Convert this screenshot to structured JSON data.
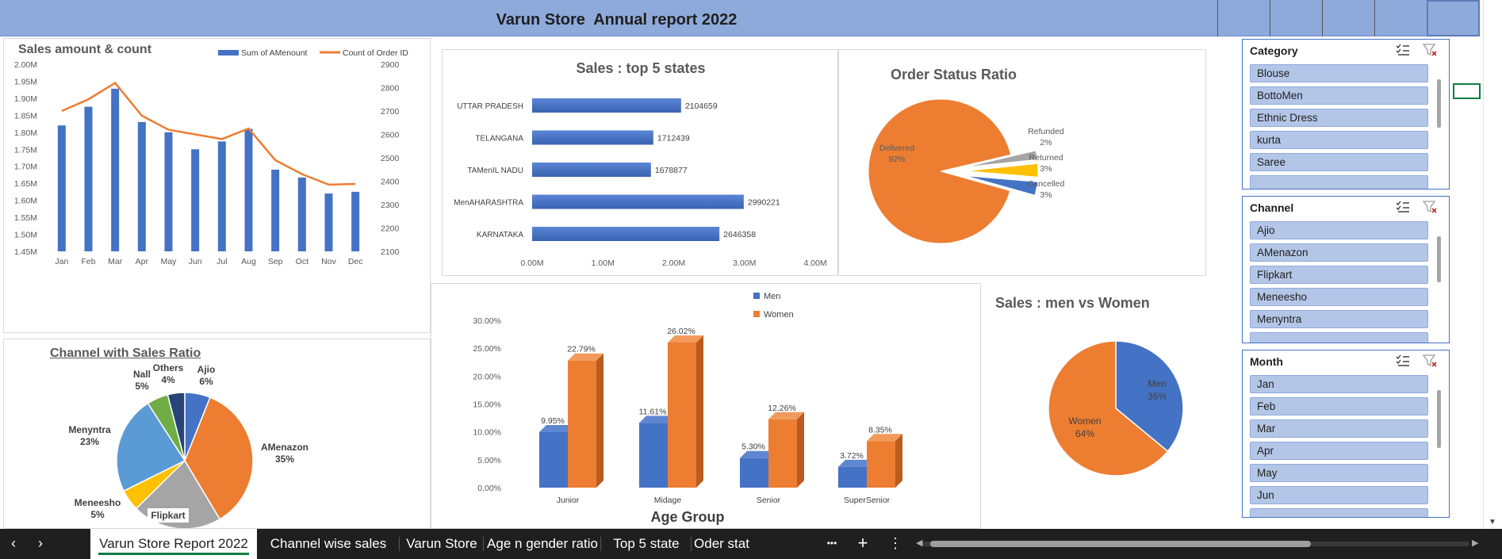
{
  "report": {
    "title": "Varun Store  Annual report 2022"
  },
  "colors": {
    "title_band": "#8eaadb",
    "blue": "#4472c4",
    "orange": "#ed7d31",
    "gray": "#a5a5a5",
    "gold": "#ffc000",
    "light_blue": "#5b9bd5",
    "green": "#70ad47",
    "navy": "#264478",
    "slicer_item": "#b4c6e7"
  },
  "chart_data": [
    {
      "id": "sales_amount_count",
      "type": "bar",
      "title": "Sales amount & count",
      "categories": [
        "Jan",
        "Feb",
        "Mar",
        "Apr",
        "May",
        "Jun",
        "Jul",
        "Aug",
        "Sep",
        "Oct",
        "Nov",
        "Dec"
      ],
      "series": [
        {
          "name": "Sum of AMenount",
          "type": "bar",
          "axis": "left",
          "values": [
            1.82,
            1.875,
            1.928,
            1.83,
            1.8,
            1.75,
            1.773,
            1.81,
            1.69,
            1.667,
            1.62,
            1.625
          ]
        },
        {
          "name": "Count of Order ID",
          "type": "line",
          "axis": "right",
          "values": [
            2700,
            2750,
            2820,
            2680,
            2620,
            2600,
            2580,
            2625,
            2490,
            2430,
            2385,
            2388
          ]
        }
      ],
      "y_left": {
        "ticks": [
          "1.45M",
          "1.50M",
          "1.55M",
          "1.60M",
          "1.65M",
          "1.70M",
          "1.75M",
          "1.80M",
          "1.85M",
          "1.90M",
          "1.95M",
          "2.00M"
        ],
        "ylim": [
          1.45,
          2.0
        ]
      },
      "y_right": {
        "ticks": [
          "2100",
          "2200",
          "2300",
          "2400",
          "2500",
          "2600",
          "2700",
          "2800",
          "2900"
        ],
        "ylim": [
          2100,
          2900
        ]
      },
      "legend": "top-right"
    },
    {
      "id": "top5_states",
      "type": "bar",
      "orientation": "horizontal",
      "title": "Sales : top 5 states",
      "categories": [
        "UTTAR PRADESH",
        "TELANGANA",
        "TAMenIL NADU",
        "MenAHARASHTRA",
        "KARNATAKA"
      ],
      "values": [
        2104659,
        1712439,
        1678877,
        2990221,
        2646358
      ],
      "data_labels": [
        "2104659",
        "1712439",
        "1678877",
        "2990221",
        "2646358"
      ],
      "x_ticks": [
        "0.00M",
        "1.00M",
        "2.00M",
        "3.00M",
        "4.00M"
      ],
      "xlim": [
        0,
        4000000
      ]
    },
    {
      "id": "order_status",
      "type": "pie",
      "title": "Order Status Ratio",
      "slices": [
        {
          "label": "Delivered",
          "pct": "92%",
          "value": 92
        },
        {
          "label": "Refunded",
          "pct": "2%",
          "value": 2
        },
        {
          "label": "Returned",
          "pct": "3%",
          "value": 3
        },
        {
          "label": "Cancelled",
          "pct": "3%",
          "value": 3
        }
      ]
    },
    {
      "id": "channel_sales_ratio",
      "type": "pie",
      "title": "Channel with Sales Ratio",
      "slices": [
        {
          "label": "Ajio",
          "pct": "6%",
          "value": 6
        },
        {
          "label": "AMenazon",
          "pct": "35%",
          "value": 35
        },
        {
          "label": "Flipkart",
          "pct": "",
          "value": 21
        },
        {
          "label": "Meneesho",
          "pct": "5%",
          "value": 5
        },
        {
          "label": "Menyntra",
          "pct": "23%",
          "value": 23
        },
        {
          "label": "Nall",
          "pct": "5%",
          "value": 5
        },
        {
          "label": "Others",
          "pct": "4%",
          "value": 4
        }
      ]
    },
    {
      "id": "age_gender",
      "type": "bar",
      "title": "",
      "xlabel": "Age Group",
      "categories": [
        "Junior",
        "Midage",
        "Senior",
        "SuperSenior"
      ],
      "series": [
        {
          "name": "Men",
          "values": [
            9.95,
            11.61,
            5.3,
            3.72
          ],
          "labels": [
            "9.95%",
            "11.61%",
            "5.30%",
            "3.72%"
          ]
        },
        {
          "name": "Women",
          "values": [
            22.79,
            26.02,
            12.26,
            8.35
          ],
          "labels": [
            "22.79%",
            "26.02%",
            "12.26%",
            "8.35%"
          ]
        }
      ],
      "y_ticks": [
        "0.00%",
        "5.00%",
        "10.00%",
        "15.00%",
        "20.00%",
        "25.00%",
        "30.00%"
      ],
      "ylim": [
        0,
        30
      ],
      "legend": "top"
    },
    {
      "id": "men_vs_women",
      "type": "pie",
      "title": "Sales : men vs Women",
      "slices": [
        {
          "label": "Men",
          "pct": "36%",
          "value": 36
        },
        {
          "label": "Women",
          "pct": "64%",
          "value": 64
        }
      ]
    }
  ],
  "slicers": [
    {
      "title": "Category",
      "items": [
        "Blouse",
        "BottoMen",
        "Ethnic Dress",
        "kurta",
        "Saree"
      ]
    },
    {
      "title": "Channel",
      "items": [
        "Ajio",
        "AMenazon",
        "Flipkart",
        "Meneesho",
        "Menyntra"
      ]
    },
    {
      "title": "Month",
      "items": [
        "Jan",
        "Feb",
        "Mar",
        "Apr",
        "May",
        "Jun"
      ]
    }
  ],
  "tabs": [
    {
      "label": "Varun Store Report 2022",
      "active": true
    },
    {
      "label": "Channel wise sales"
    },
    {
      "label": "Varun Store"
    },
    {
      "label": "Age n gender ratio"
    },
    {
      "label": "Top 5 state"
    },
    {
      "label": "Oder stat"
    }
  ],
  "tab_controls": {
    "more": "•••",
    "add": "+",
    "menu": "⋮",
    "prev": "‹",
    "next": "›"
  }
}
